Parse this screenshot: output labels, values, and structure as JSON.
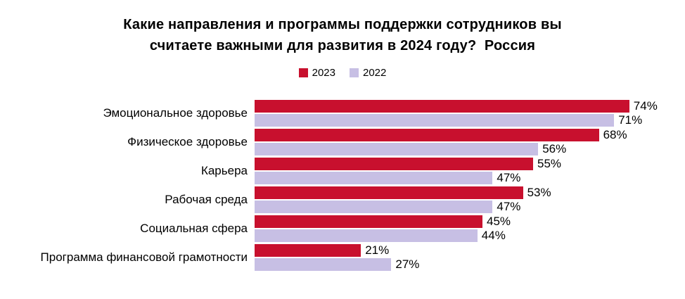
{
  "title": {
    "line1": "Какие направления и программы поддержки сотрудников вы",
    "line2": "считаете важными для развития в 2024 году?  Россия"
  },
  "chart_data": {
    "type": "bar",
    "orientation": "horizontal",
    "title": "Какие направления и программы поддержки сотрудников вы считаете важными для развития в 2024 году? Россия",
    "categories": [
      "Эмоциональное здоровье",
      "Физическое здоровье",
      "Карьера",
      "Рабочая среда",
      "Социальная сфера",
      "Программа финансовой грамотности"
    ],
    "series": [
      {
        "name": "2023",
        "color": "#C8102E",
        "values": [
          74,
          68,
          55,
          53,
          45,
          21
        ]
      },
      {
        "name": "2022",
        "color": "#C7BFE4",
        "values": [
          71,
          56,
          47,
          47,
          44,
          27
        ]
      }
    ],
    "value_suffix": "%",
    "xlim": [
      0,
      100
    ],
    "grid": false,
    "legend_position": "top",
    "background": "#FFFFFF",
    "text_color": "#000000"
  }
}
